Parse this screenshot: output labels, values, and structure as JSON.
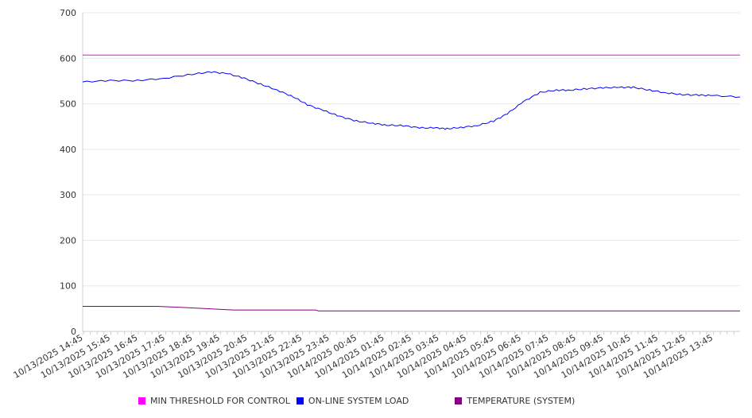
{
  "chart_data": {
    "type": "line",
    "title": "",
    "xlabel": "",
    "ylabel": "",
    "ylim": [
      0,
      700
    ],
    "yticks": [
      0,
      100,
      200,
      300,
      400,
      500,
      600,
      700
    ],
    "grid": true,
    "legend_placement": "bottom",
    "x_unit": "hours since 10/13/2025 14:45",
    "xlim": [
      0,
      24
    ],
    "xtick_labels": [
      "10/13/2025 14:45",
      "10/13/2025 15:45",
      "10/13/2025 16:45",
      "10/13/2025 17:45",
      "10/13/2025 18:45",
      "10/13/2025 19:45",
      "10/13/2025 20:45",
      "10/13/2025 21:45",
      "10/13/2025 22:45",
      "10/13/2025 23:45",
      "10/14/2025 00:45",
      "10/14/2025 01:45",
      "10/14/2025 02:45",
      "10/14/2025 03:45",
      "10/14/2025 04:45",
      "10/14/2025 05:45",
      "10/14/2025 06:45",
      "10/14/2025 07:45",
      "10/14/2025 08:45",
      "10/14/2025 09:45",
      "10/14/2025 10:45",
      "10/14/2025 11:45",
      "10/14/2025 12:45",
      "10/14/2025 13:45"
    ],
    "series": [
      {
        "name": "MIN THRESHOLD FOR CONTROL",
        "color": "#ff00ff",
        "x": [
          0,
          24
        ],
        "values": [
          607,
          607
        ]
      },
      {
        "name": "ON-LINE SYSTEM LOAD",
        "color": "#0000ff",
        "x": [
          0,
          1,
          2,
          3,
          4,
          4.7,
          5.3,
          5.9,
          6.5,
          7.1,
          7.7,
          8.2,
          8.8,
          9.4,
          10,
          10.6,
          11.1,
          11.7,
          12.3,
          12.9,
          13.3,
          13.8,
          14.4,
          15,
          15.5,
          16.1,
          16.7,
          17.3,
          17.8,
          18.4,
          19,
          19.6,
          20.1,
          20.7,
          21.3,
          21.9,
          22.5,
          23,
          24
        ],
        "values": [
          548,
          551,
          551,
          556,
          565,
          570,
          566,
          556,
          543,
          530,
          515,
          498,
          485,
          472,
          462,
          457,
          453,
          452,
          447,
          447,
          445,
          448,
          452,
          462,
          478,
          505,
          525,
          530,
          530,
          533,
          535,
          536,
          536,
          530,
          524,
          520,
          519,
          518,
          515
        ]
      },
      {
        "name": "TEMPERATURE (SYSTEM)",
        "color": "#800080",
        "x": [
          0,
          2.7,
          3.5,
          4.5,
          5.5,
          8.5,
          8.6,
          24
        ],
        "values": [
          55,
          55,
          53,
          50,
          47,
          47,
          45,
          45
        ]
      }
    ]
  }
}
